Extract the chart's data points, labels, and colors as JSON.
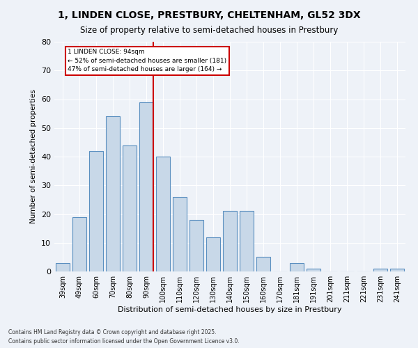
{
  "title_line1": "1, LINDEN CLOSE, PRESTBURY, CHELTENHAM, GL52 3DX",
  "title_line2": "Size of property relative to semi-detached houses in Prestbury",
  "xlabel": "Distribution of semi-detached houses by size in Prestbury",
  "ylabel": "Number of semi-detached properties",
  "categories": [
    "39sqm",
    "49sqm",
    "60sqm",
    "70sqm",
    "80sqm",
    "90sqm",
    "100sqm",
    "110sqm",
    "120sqm",
    "130sqm",
    "140sqm",
    "150sqm",
    "160sqm",
    "170sqm",
    "181sqm",
    "191sqm",
    "201sqm",
    "211sqm",
    "221sqm",
    "231sqm",
    "241sqm"
  ],
  "values": [
    3,
    19,
    42,
    54,
    44,
    59,
    40,
    26,
    18,
    12,
    21,
    21,
    5,
    0,
    3,
    1,
    0,
    0,
    0,
    1,
    1
  ],
  "bar_color": "#c8d8e8",
  "bar_edge_color": "#5a8fc0",
  "subject_bar_index": 5,
  "annotation_line1": "1 LINDEN CLOSE: 94sqm",
  "annotation_line2": "← 52% of semi-detached houses are smaller (181)",
  "annotation_line3": "47% of semi-detached houses are larger (164) →",
  "vline_color": "#cc0000",
  "annotation_box_color": "#ffffff",
  "annotation_box_edge_color": "#cc0000",
  "footer_line1": "Contains HM Land Registry data © Crown copyright and database right 2025.",
  "footer_line2": "Contains public sector information licensed under the Open Government Licence v3.0.",
  "ylim": [
    0,
    80
  ],
  "yticks": [
    0,
    10,
    20,
    30,
    40,
    50,
    60,
    70,
    80
  ],
  "background_color": "#eef2f8",
  "plot_background_color": "#eef2f8"
}
